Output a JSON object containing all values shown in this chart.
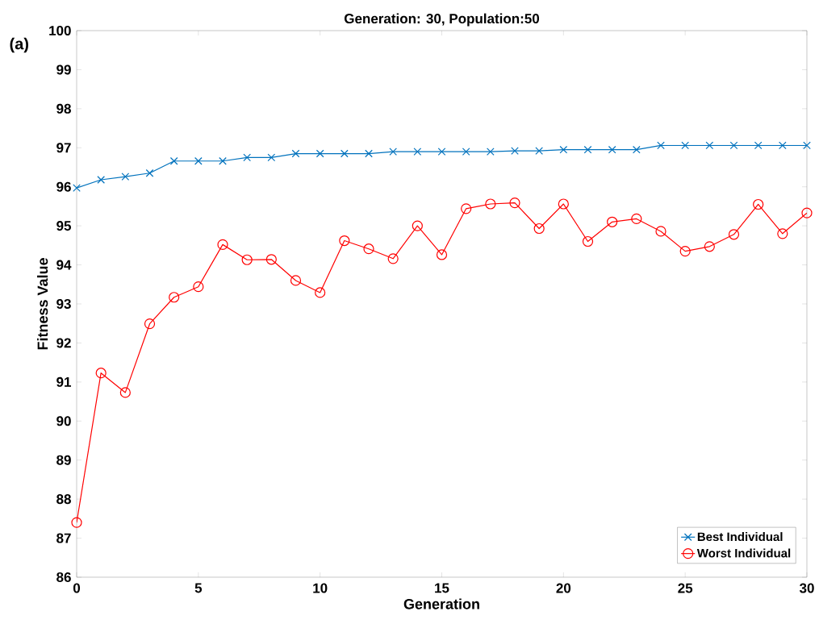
{
  "chart_data": {
    "type": "line",
    "title": "Generation: 30, Population:50",
    "xlabel": "Generation",
    "ylabel": "Fitness Value",
    "annotations": [
      "(a)"
    ],
    "x": [
      0,
      1,
      2,
      3,
      4,
      5,
      6,
      7,
      8,
      9,
      10,
      11,
      12,
      13,
      14,
      15,
      16,
      17,
      18,
      19,
      20,
      21,
      22,
      23,
      24,
      25,
      26,
      27,
      28,
      29,
      30
    ],
    "series": [
      {
        "name": "Best Individual",
        "color": "#0072bd",
        "marker": "cross",
        "values": [
          95.97,
          96.18,
          96.26,
          96.35,
          96.66,
          96.66,
          96.66,
          96.75,
          96.75,
          96.85,
          96.85,
          96.85,
          96.85,
          96.9,
          96.9,
          96.9,
          96.9,
          96.9,
          96.92,
          96.92,
          96.95,
          96.95,
          96.95,
          96.95,
          97.06,
          97.06,
          97.06,
          97.06,
          97.06,
          97.06,
          97.06
        ]
      },
      {
        "name": "Worst Individual",
        "color": "#ff0000",
        "marker": "circle",
        "values": [
          87.4,
          91.23,
          90.73,
          92.49,
          93.17,
          93.44,
          94.52,
          94.13,
          94.14,
          93.6,
          93.29,
          94.62,
          94.41,
          94.16,
          95.0,
          94.26,
          95.44,
          95.56,
          95.59,
          94.93,
          95.56,
          94.6,
          95.1,
          95.18,
          94.86,
          94.35,
          94.47,
          94.78,
          95.55,
          94.8,
          95.33
        ]
      }
    ],
    "xlim": [
      0,
      30
    ],
    "ylim": [
      86,
      100
    ],
    "xticks": [
      0,
      5,
      10,
      15,
      20,
      25,
      30
    ],
    "yticks": [
      86,
      87,
      88,
      89,
      90,
      91,
      92,
      93,
      94,
      95,
      96,
      97,
      98,
      99,
      100
    ],
    "grid": false,
    "legend": "bottom right",
    "line_style": "solid"
  }
}
